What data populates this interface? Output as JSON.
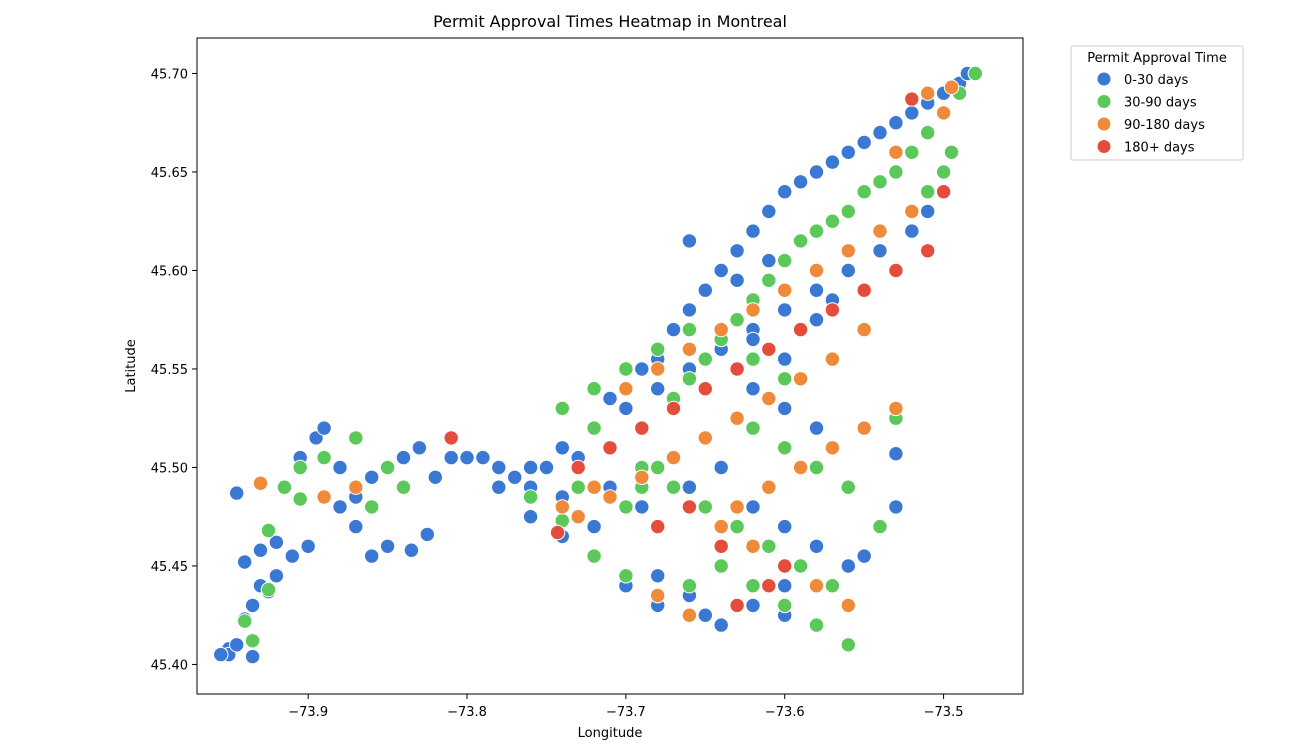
{
  "chart_data": {
    "type": "scatter",
    "title": "Permit Approval Times Heatmap in Montreal",
    "xlabel": "Longitude",
    "ylabel": "Latitude",
    "xlim": [
      -73.97,
      -73.45
    ],
    "ylim": [
      45.385,
      45.718
    ],
    "xticks": [
      -73.9,
      -73.8,
      -73.7,
      -73.6,
      -73.5
    ],
    "xtick_labels": [
      "−73.9",
      "−73.8",
      "−73.7",
      "−73.6",
      "−73.5"
    ],
    "yticks": [
      45.4,
      45.45,
      45.5,
      45.55,
      45.6,
      45.65,
      45.7
    ],
    "ytick_labels": [
      "45.40",
      "45.45",
      "45.50",
      "45.55",
      "45.60",
      "45.65",
      "45.70"
    ],
    "grid": false,
    "legend": {
      "title": "Permit Approval Time",
      "placement": "outside-top-right"
    },
    "series": [
      {
        "name": "0-30 days",
        "color": "#3a78d4",
        "x": [
          -73.945,
          -73.94,
          -73.95,
          -73.935,
          -73.93,
          -73.92,
          -73.905,
          -73.895,
          -73.89,
          -73.88,
          -73.87,
          -73.86,
          -73.85,
          -73.84,
          -73.83,
          -73.82,
          -73.81,
          -73.8,
          -73.79,
          -73.78,
          -73.77,
          -73.76,
          -73.75,
          -73.74,
          -73.73,
          -73.72,
          -73.71,
          -73.7,
          -73.69,
          -73.68,
          -73.67,
          -73.66,
          -73.65,
          -73.64,
          -73.63,
          -73.62,
          -73.61,
          -73.6,
          -73.59,
          -73.58,
          -73.57,
          -73.56,
          -73.55,
          -73.54,
          -73.53,
          -73.52,
          -73.51,
          -73.5,
          -73.49,
          -73.485,
          -73.5,
          -73.51,
          -73.52,
          -73.54,
          -73.56,
          -73.58,
          -73.6,
          -73.62,
          -73.64,
          -73.66,
          -73.68,
          -73.7,
          -73.72,
          -73.74,
          -73.76,
          -73.78,
          -73.6,
          -73.62,
          -73.64,
          -73.66,
          -73.68,
          -73.72,
          -73.56,
          -73.58,
          -73.6,
          -73.62,
          -73.64,
          -73.7,
          -73.68,
          -73.65,
          -73.6,
          -73.55,
          -73.54,
          -73.53,
          -73.58,
          -73.6,
          -73.62,
          -73.64,
          -73.66,
          -73.7,
          -73.72,
          -73.74,
          -73.76,
          -73.86,
          -73.87,
          -73.88,
          -73.9,
          -73.91,
          -73.92,
          -73.93,
          -73.94,
          -73.95,
          -73.955,
          -73.945,
          -73.935,
          -73.925,
          -73.835,
          -73.825,
          -73.53,
          -73.6,
          -73.62,
          -73.58,
          -73.57,
          -73.63,
          -73.61,
          -73.66,
          -73.69,
          -73.71
        ],
        "y": [
          45.487,
          45.452,
          45.408,
          45.43,
          45.458,
          45.462,
          45.505,
          45.515,
          45.52,
          45.5,
          45.485,
          45.495,
          45.46,
          45.505,
          45.51,
          45.495,
          45.505,
          45.505,
          45.505,
          45.5,
          45.495,
          45.49,
          45.5,
          45.485,
          45.505,
          45.52,
          45.535,
          45.54,
          45.55,
          45.555,
          45.57,
          45.58,
          45.59,
          45.6,
          45.61,
          45.62,
          45.63,
          45.64,
          45.645,
          45.65,
          45.655,
          45.66,
          45.665,
          45.67,
          45.675,
          45.68,
          45.685,
          45.69,
          45.695,
          45.7,
          45.64,
          45.63,
          45.62,
          45.61,
          45.6,
          45.59,
          45.58,
          45.57,
          45.56,
          45.55,
          45.54,
          45.53,
          45.52,
          45.51,
          45.5,
          45.49,
          45.44,
          45.43,
          45.42,
          45.435,
          45.445,
          45.455,
          45.45,
          45.46,
          45.47,
          45.48,
          45.47,
          45.44,
          45.43,
          45.425,
          45.425,
          45.455,
          45.47,
          45.48,
          45.52,
          45.53,
          45.54,
          45.5,
          45.49,
          45.48,
          45.47,
          45.465,
          45.475,
          45.455,
          45.47,
          45.48,
          45.46,
          45.455,
          45.445,
          45.44,
          45.423,
          45.405,
          45.405,
          45.41,
          45.404,
          45.437,
          45.458,
          45.466,
          45.507,
          45.555,
          45.565,
          45.575,
          45.585,
          45.595,
          45.605,
          45.615,
          45.48,
          45.49
        ],
        "size": 95
      },
      {
        "name": "30-90 days",
        "color": "#5bc85a",
        "x": [
          -73.94,
          -73.925,
          -73.915,
          -73.905,
          -73.89,
          -73.87,
          -73.86,
          -73.85,
          -73.84,
          -73.76,
          -73.74,
          -73.72,
          -73.7,
          -73.69,
          -73.68,
          -73.67,
          -73.66,
          -73.65,
          -73.64,
          -73.63,
          -73.62,
          -73.61,
          -73.6,
          -73.59,
          -73.58,
          -73.57,
          -73.56,
          -73.55,
          -73.54,
          -73.53,
          -73.52,
          -73.51,
          -73.5,
          -73.49,
          -73.48,
          -73.62,
          -73.6,
          -73.58,
          -73.56,
          -73.54,
          -73.64,
          -73.66,
          -73.68,
          -73.7,
          -73.72,
          -73.62,
          -73.6,
          -73.58,
          -73.56,
          -73.6,
          -73.62,
          -73.64,
          -73.57,
          -73.55,
          -73.53,
          -73.7,
          -73.68,
          -73.66,
          -73.74,
          -73.72,
          -73.63,
          -73.61,
          -73.59,
          -73.57,
          -73.65,
          -73.67,
          -73.69,
          -73.73,
          -73.71,
          -73.53,
          -73.51,
          -73.5,
          -73.495,
          -73.925,
          -73.935,
          -73.905,
          -73.87
        ],
        "y": [
          45.422,
          45.438,
          45.49,
          45.5,
          45.505,
          45.515,
          45.48,
          45.5,
          45.49,
          45.485,
          45.473,
          45.52,
          45.48,
          45.49,
          45.5,
          45.535,
          45.545,
          45.555,
          45.565,
          45.575,
          45.585,
          45.595,
          45.605,
          45.615,
          45.62,
          45.625,
          45.63,
          45.64,
          45.645,
          45.65,
          45.66,
          45.67,
          45.68,
          45.69,
          45.7,
          45.52,
          45.51,
          45.5,
          45.49,
          45.47,
          45.45,
          45.44,
          45.435,
          45.445,
          45.455,
          45.44,
          45.43,
          45.42,
          45.41,
          45.545,
          45.555,
          45.565,
          45.51,
          45.52,
          45.53,
          45.55,
          45.56,
          45.57,
          45.53,
          45.54,
          45.47,
          45.46,
          45.45,
          45.44,
          45.48,
          45.49,
          45.5,
          45.49,
          45.51,
          45.525,
          45.64,
          45.65,
          45.66,
          45.468,
          45.412,
          45.484,
          45.515
        ],
        "size": 95
      },
      {
        "name": "90-180 days",
        "color": "#ef8a3a",
        "x": [
          -73.93,
          -73.89,
          -73.87,
          -73.74,
          -73.72,
          -73.7,
          -73.68,
          -73.66,
          -73.64,
          -73.62,
          -73.6,
          -73.58,
          -73.56,
          -73.54,
          -73.52,
          -73.5,
          -73.5,
          -73.51,
          -73.53,
          -73.55,
          -73.57,
          -73.59,
          -73.61,
          -73.63,
          -73.65,
          -73.67,
          -73.69,
          -73.71,
          -73.73,
          -73.64,
          -73.62,
          -73.6,
          -73.58,
          -73.56,
          -73.66,
          -73.68,
          -73.63,
          -73.61,
          -73.59,
          -73.57,
          -73.55,
          -73.53,
          -73.495
        ],
        "y": [
          45.492,
          45.485,
          45.49,
          45.48,
          45.49,
          45.54,
          45.55,
          45.56,
          45.57,
          45.58,
          45.59,
          45.6,
          45.61,
          45.62,
          45.63,
          45.64,
          45.68,
          45.69,
          45.66,
          45.57,
          45.555,
          45.545,
          45.535,
          45.525,
          45.515,
          45.505,
          45.495,
          45.485,
          45.475,
          45.47,
          45.46,
          45.45,
          45.44,
          45.43,
          45.425,
          45.435,
          45.48,
          45.49,
          45.5,
          45.51,
          45.52,
          45.53,
          45.693
        ],
        "size": 95
      },
      {
        "name": "180+ days",
        "color": "#e44d3c",
        "x": [
          -73.743,
          -73.81,
          -73.73,
          -73.71,
          -73.69,
          -73.67,
          -73.65,
          -73.63,
          -73.61,
          -73.59,
          -73.57,
          -73.55,
          -73.53,
          -73.51,
          -73.52,
          -73.63,
          -73.61,
          -73.6,
          -73.64,
          -73.68,
          -73.66,
          -73.5
        ],
        "y": [
          45.467,
          45.515,
          45.5,
          45.51,
          45.52,
          45.53,
          45.54,
          45.55,
          45.56,
          45.57,
          45.58,
          45.59,
          45.6,
          45.61,
          45.687,
          45.43,
          45.44,
          45.45,
          45.46,
          45.47,
          45.48,
          45.64
        ],
        "size": 95
      }
    ]
  }
}
